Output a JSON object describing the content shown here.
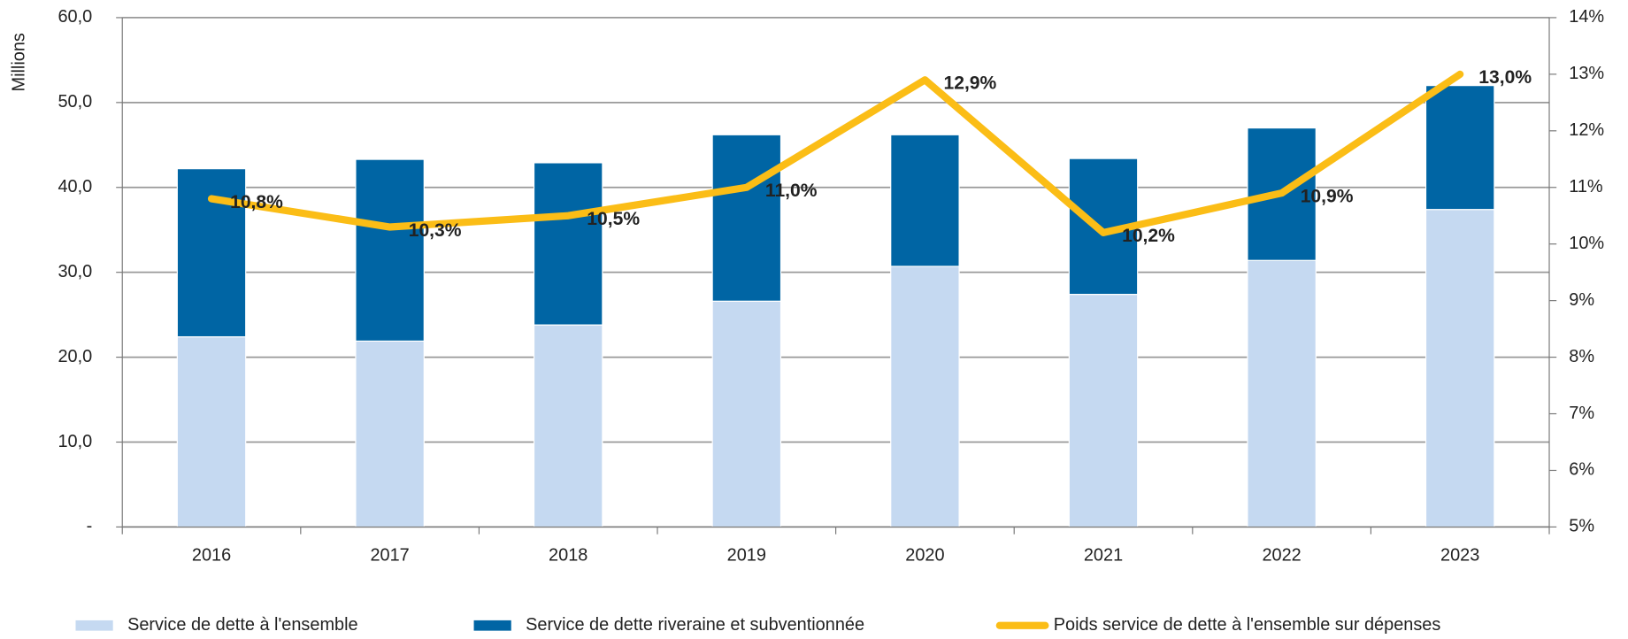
{
  "chart_data": {
    "type": "bar",
    "y_axis_label": "Millions",
    "categories": [
      "2016",
      "2017",
      "2018",
      "2019",
      "2020",
      "2021",
      "2022",
      "2023"
    ],
    "series": [
      {
        "name": "Service de dette à l'ensemble",
        "color": "#c5d9f1",
        "values": [
          22.4,
          21.9,
          23.8,
          26.6,
          30.7,
          27.4,
          31.4,
          37.4
        ]
      },
      {
        "name": "Service de dette riveraine et subventionnée",
        "color": "#0065a4",
        "values": [
          19.8,
          21.4,
          19.1,
          19.6,
          15.5,
          16.0,
          15.6,
          14.6
        ]
      },
      {
        "name": "Poids service de dette à l'ensemble sur dépenses",
        "color": "#fbbd16",
        "type": "line",
        "axis": "y2",
        "values": [
          10.8,
          10.3,
          10.5,
          11.0,
          12.9,
          10.2,
          10.9,
          13.0
        ],
        "value_labels": [
          "10,8%",
          "10,3%",
          "10,5%",
          "11,0%",
          "12,9%",
          "10,2%",
          "10,9%",
          "13,0%"
        ]
      }
    ],
    "stacked": true,
    "ylim": [
      0,
      60
    ],
    "yticks": [
      {
        "value": 0,
        "label": "-"
      },
      {
        "value": 10,
        "label": "10,0"
      },
      {
        "value": 20,
        "label": "20,0"
      },
      {
        "value": 30,
        "label": "30,0"
      },
      {
        "value": 40,
        "label": "40,0"
      },
      {
        "value": 50,
        "label": "50,0"
      },
      {
        "value": 60,
        "label": "60,0"
      }
    ],
    "y2lim": [
      5,
      14
    ],
    "y2ticks": [
      {
        "value": 5,
        "label": "5%"
      },
      {
        "value": 6,
        "label": "6%"
      },
      {
        "value": 7,
        "label": "7%"
      },
      {
        "value": 8,
        "label": "8%"
      },
      {
        "value": 9,
        "label": "9%"
      },
      {
        "value": 10,
        "label": "10%"
      },
      {
        "value": 11,
        "label": "11%"
      },
      {
        "value": 12,
        "label": "12%"
      },
      {
        "value": 13,
        "label": "13%"
      },
      {
        "value": 14,
        "label": "14%"
      }
    ],
    "grid": true,
    "legend": "bottom"
  }
}
